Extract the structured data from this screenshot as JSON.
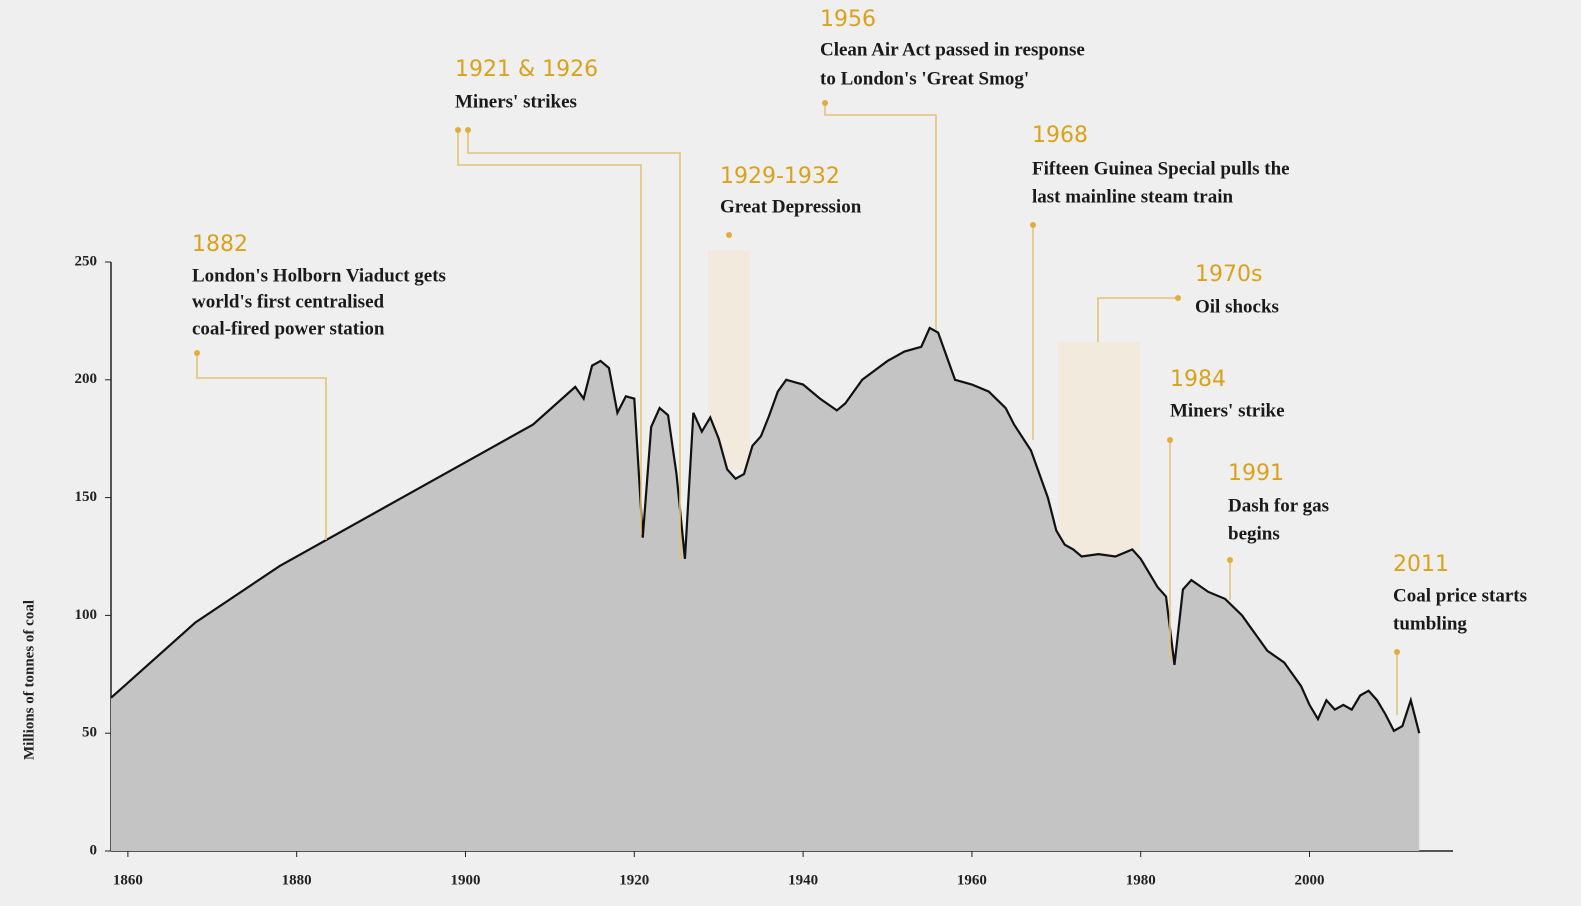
{
  "chart_data": {
    "type": "area",
    "y_label": "Millions of tonnes of coal",
    "x": [
      1858,
      1868,
      1878,
      1892,
      1908,
      1913,
      1914,
      1915,
      1916,
      1917,
      1918,
      1919,
      1920,
      1921,
      1922,
      1923,
      1924,
      1925,
      1926,
      1927,
      1928,
      1929,
      1930,
      1931,
      1932,
      1933,
      1934,
      1935,
      1936,
      1937,
      1938,
      1939,
      1940,
      1942,
      1944,
      1945,
      1947,
      1950,
      1952,
      1954,
      1955,
      1956,
      1958,
      1960,
      1962,
      1964,
      1965,
      1967,
      1969,
      1970,
      1971,
      1972,
      1973,
      1975,
      1977,
      1979,
      1980,
      1981,
      1982,
      1983,
      1984,
      1985,
      1986,
      1988,
      1990,
      1992,
      1993,
      1995,
      1997,
      1999,
      2000,
      2001,
      2002,
      2003,
      2004,
      2005,
      2006,
      2007,
      2008,
      2009,
      2010,
      2011,
      2012,
      2013
    ],
    "values": [
      65,
      97,
      121,
      149,
      181,
      197,
      192,
      206,
      208,
      205,
      186,
      193,
      192,
      133,
      180,
      188,
      185,
      160,
      124,
      186,
      178,
      184,
      175,
      162,
      158,
      160,
      172,
      176,
      185,
      195,
      200,
      199,
      198,
      192,
      187,
      190,
      200,
      208,
      212,
      214,
      222,
      220,
      200,
      198,
      195,
      188,
      181,
      170,
      150,
      136,
      130,
      128,
      125,
      126,
      125,
      128,
      124,
      118,
      112,
      108,
      79,
      111,
      115,
      110,
      107,
      100,
      95,
      85,
      80,
      70,
      62,
      56,
      64,
      60,
      62,
      60,
      66,
      68,
      64,
      58,
      51,
      53,
      64,
      50
    ],
    "color": "#111111",
    "fill": "#c4c4c4",
    "xlim": [
      1858,
      2017
    ],
    "ylim": [
      0,
      250
    ],
    "xticks": [
      1860,
      1880,
      1900,
      1920,
      1940,
      1960,
      1980,
      2000
    ],
    "yticks": [
      0,
      50,
      100,
      150,
      200,
      250
    ],
    "annotations": [
      {
        "year": "1882",
        "text": [
          "London's Holborn Viaduct gets",
          "world's first centralised",
          "coal-fired power station"
        ]
      },
      {
        "year": "1921 & 1926",
        "text": [
          "Miners' strikes"
        ]
      },
      {
        "year": "1929-1932",
        "text": [
          "Great Depression"
        ]
      },
      {
        "year": "1956",
        "text": [
          "Clean Air Act passed in response",
          "to London's 'Great Smog'"
        ]
      },
      {
        "year": "1968",
        "text": [
          "Fifteen Guinea Special pulls the",
          "last mainline steam train"
        ]
      },
      {
        "year": "1970s",
        "text": [
          "Oil shocks"
        ]
      },
      {
        "year": "1984",
        "text": [
          "Miners' strike"
        ]
      },
      {
        "year": "1991",
        "text": [
          "Dash for gas",
          "begins"
        ]
      },
      {
        "year": "2011",
        "text": [
          "Coal price starts",
          "tumbling"
        ]
      }
    ]
  }
}
